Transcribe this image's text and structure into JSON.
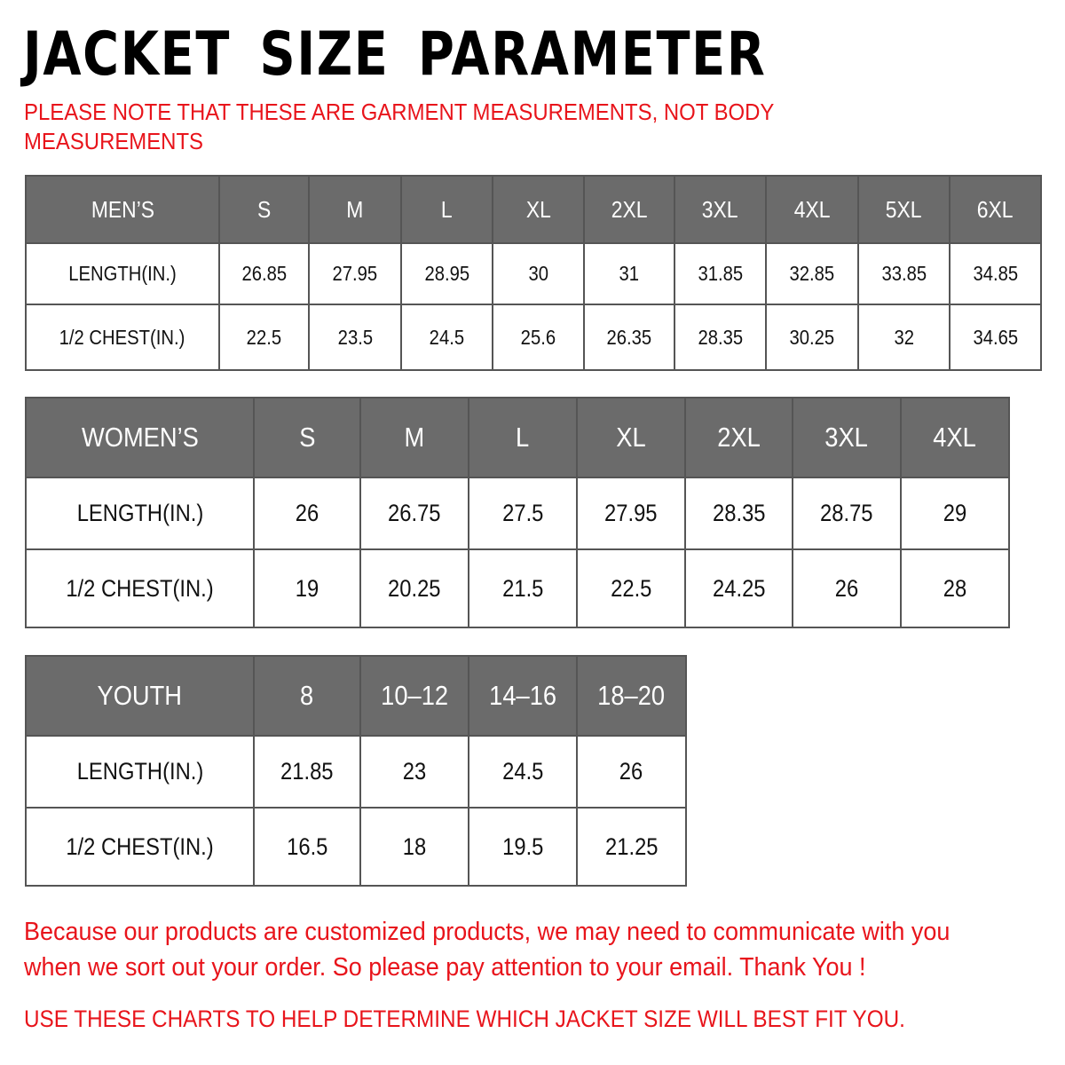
{
  "title": "JACKET SIZE PARAMETER",
  "note_line1": "PLEASE NOTE THAT THESE ARE GARMENT MEASUREMENTS, NOT BODY",
  "note_line2": "MEASUREMENTS",
  "colors": {
    "header_bg": "#6b6b6b",
    "accent_red": "#e8141b"
  },
  "men": {
    "headers": [
      "MEN’S",
      "S",
      "M",
      "L",
      "XL",
      "2XL",
      "3XL",
      "4XL",
      "5XL",
      "6XL"
    ],
    "rows": [
      [
        "LENGTH(IN.)",
        "26.85",
        "27.95",
        "28.95",
        "30",
        "31",
        "31.85",
        "32.85",
        "33.85",
        "34.85"
      ],
      [
        "1/2 CHEST(IN.)",
        "22.5",
        "23.5",
        "24.5",
        "25.6",
        "26.35",
        "28.35",
        "30.25",
        "32",
        "34.65"
      ]
    ]
  },
  "women": {
    "headers": [
      "WOMEN’S",
      "S",
      "M",
      "L",
      "XL",
      "2XL",
      "3XL",
      "4XL"
    ],
    "rows": [
      [
        "LENGTH(IN.)",
        "26",
        "26.75",
        "27.5",
        "27.95",
        "28.35",
        "28.75",
        "29"
      ],
      [
        "1/2 CHEST(IN.)",
        "19",
        "20.25",
        "21.5",
        "22.5",
        "24.25",
        "26",
        "28"
      ]
    ]
  },
  "youth": {
    "headers": [
      "YOUTH",
      "8",
      "10–12",
      "14–16",
      "18–20"
    ],
    "rows": [
      [
        "LENGTH(IN.)",
        "21.85",
        "23",
        "24.5",
        "26"
      ],
      [
        "1/2 CHEST(IN.)",
        "16.5",
        "18",
        "19.5",
        "21.25"
      ]
    ]
  },
  "footer_line1": "Because our products are customized products, we may need to communicate with you",
  "footer_line2": "when we sort out your order. So please pay attention to your email. Thank You !",
  "footer_line3": "USE THESE CHARTS TO HELP DETERMINE WHICH JACKET SIZE WILL BEST FIT YOU."
}
